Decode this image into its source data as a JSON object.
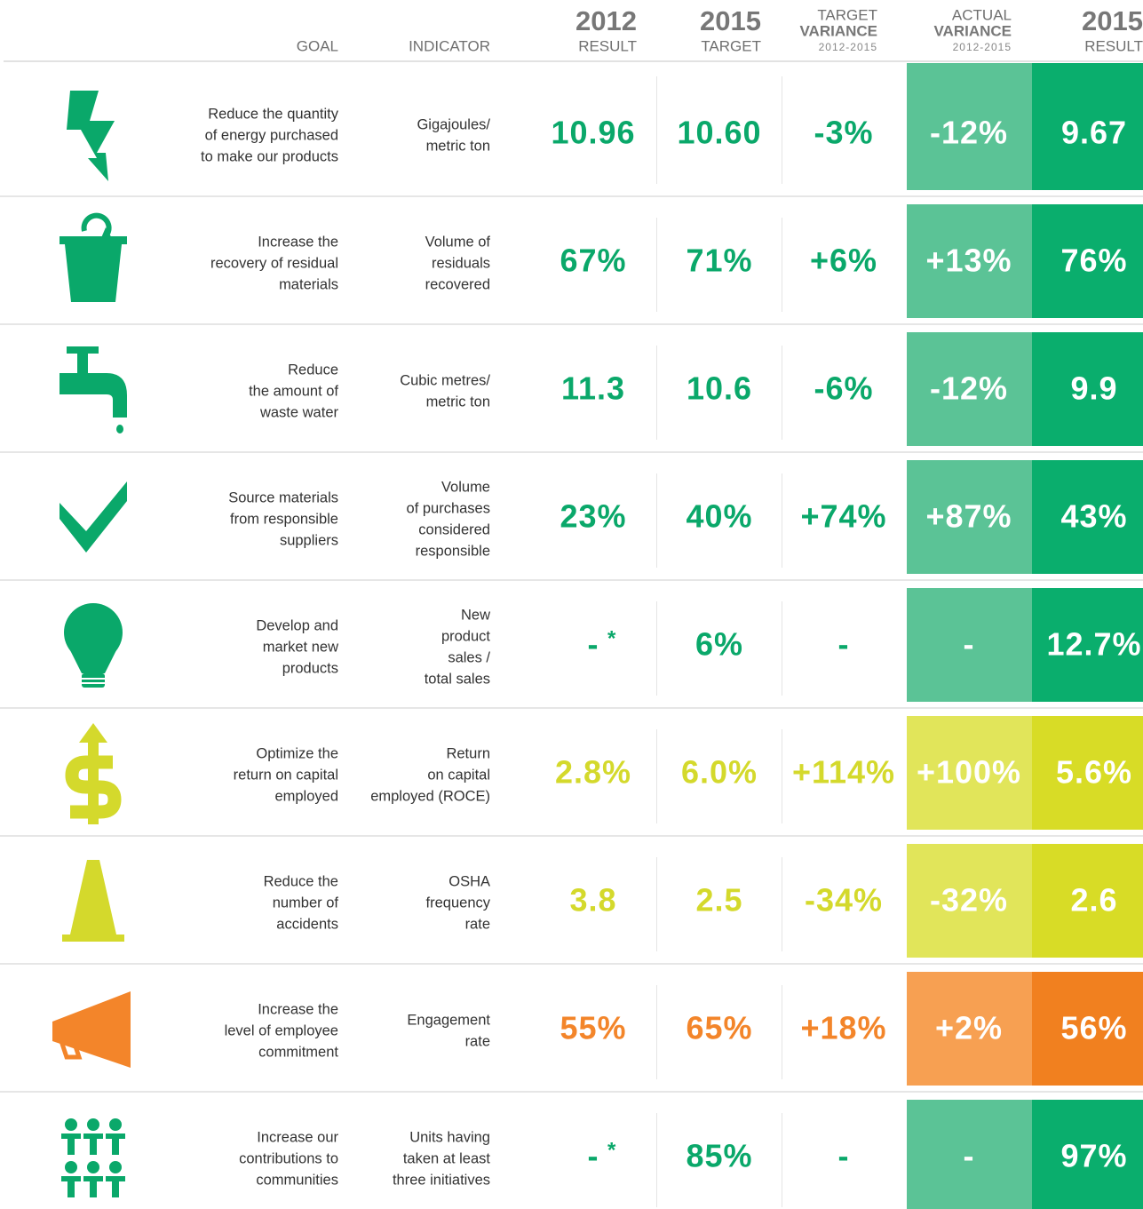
{
  "header": {
    "goal": "GOAL",
    "indicator": "INDICATOR",
    "result_2012": {
      "year": "2012",
      "label": "RESULT"
    },
    "target_2015": {
      "year": "2015",
      "label": "TARGET"
    },
    "target_variance": {
      "top": "TARGET",
      "label": "VARIANCE",
      "range": "2012-2015"
    },
    "actual_variance": {
      "top": "ACTUAL",
      "label": "VARIANCE",
      "range": "2012-2015"
    },
    "result_2015": {
      "year": "2015",
      "label": "RESULT"
    }
  },
  "rows": [
    {
      "theme": "green",
      "goal": [
        "Reduce the quantity",
        "of energy purchased",
        "to make our products"
      ],
      "indicator": [
        "Gigajoules/",
        "metric ton"
      ],
      "result_2012": "10.96",
      "target_2015": "10.60",
      "target_variance": "-3%",
      "actual_variance": "-12%",
      "result_2015": "9.67"
    },
    {
      "theme": "green",
      "goal": [
        "Increase the",
        "recovery of residual",
        "materials"
      ],
      "indicator": [
        "Volume of",
        "residuals",
        "recovered"
      ],
      "result_2012": "67%",
      "target_2015": "71%",
      "target_variance": "+6%",
      "actual_variance": "+13%",
      "result_2015": "76%"
    },
    {
      "theme": "green",
      "goal": [
        "Reduce",
        "the amount of",
        "waste water"
      ],
      "indicator": [
        "Cubic metres/",
        "metric ton"
      ],
      "result_2012": "11.3",
      "target_2015": "10.6",
      "target_variance": "-6%",
      "actual_variance": "-12%",
      "result_2015": "9.9"
    },
    {
      "theme": "green",
      "goal": [
        "Source materials",
        "from responsible",
        "suppliers"
      ],
      "indicator": [
        "Volume",
        "of purchases",
        "considered",
        "responsible"
      ],
      "result_2012": "23%",
      "target_2015": "40%",
      "target_variance": "+74%",
      "actual_variance": "+87%",
      "result_2015": "43%"
    },
    {
      "theme": "green",
      "goal": [
        "Develop and",
        "market new",
        "products"
      ],
      "indicator": [
        "New",
        "product",
        "sales /",
        "total sales"
      ],
      "result_2012": "-",
      "note": "*",
      "target_2015": "6%",
      "target_variance": "-",
      "actual_variance": "-",
      "result_2015": "12.7%"
    },
    {
      "theme": "yellow",
      "goal": [
        "Optimize the",
        "return on capital",
        "employed"
      ],
      "indicator": [
        "Return",
        "on capital",
        "employed (ROCE)"
      ],
      "result_2012": "2.8%",
      "target_2015": "6.0%",
      "target_variance": "+114%",
      "actual_variance": "+100%",
      "result_2015": "5.6%"
    },
    {
      "theme": "yellow",
      "goal": [
        "Reduce the",
        "number of",
        "accidents"
      ],
      "indicator": [
        "OSHA",
        "frequency",
        "rate"
      ],
      "result_2012": "3.8",
      "target_2015": "2.5",
      "target_variance": "-34%",
      "actual_variance": "-32%",
      "result_2015": "2.6"
    },
    {
      "theme": "orange",
      "goal": [
        "Increase the",
        "level of employee",
        "commitment"
      ],
      "indicator": [
        "Engagement",
        "rate"
      ],
      "result_2012": "55%",
      "target_2015": "65%",
      "target_variance": "+18%",
      "actual_variance": "+2%",
      "result_2015": "56%"
    },
    {
      "theme": "green",
      "goal": [
        "Increase our",
        "contributions to",
        "communities"
      ],
      "indicator": [
        "Units having",
        "taken at least",
        "three initiatives"
      ],
      "result_2012": "-",
      "note": "*",
      "target_2015": "85%",
      "target_variance": "-",
      "actual_variance": "-",
      "result_2015": "97%"
    }
  ]
}
